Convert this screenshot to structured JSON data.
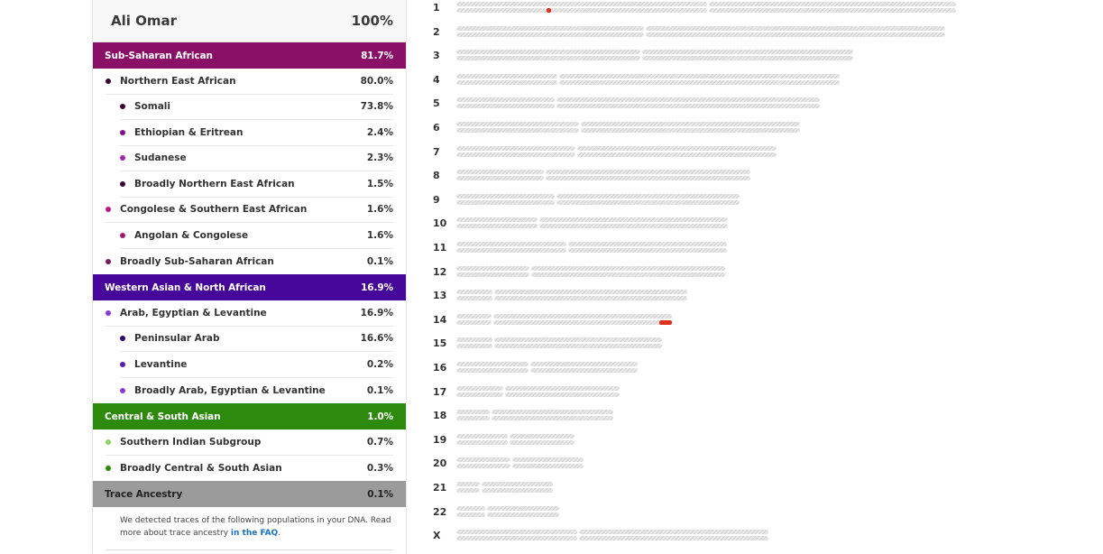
{
  "person": {
    "name": "Ali Omar",
    "total": "100%"
  },
  "colors": {
    "sub_saharan": "#8a0f66",
    "western_asian": "#46069a",
    "central_south_asian": "#2e8a0c",
    "trace": "#9b9b9b",
    "highlight": "#e0301e"
  },
  "ancestry": {
    "sub_saharan": {
      "label": "Sub-Saharan African",
      "value": "81.7%",
      "northern_east_african": {
        "label": "Northern East African",
        "value": "80.0%",
        "dot": "#3d0636"
      },
      "somali": {
        "label": "Somali",
        "value": "73.8%",
        "dot": "#3d0636"
      },
      "ethiopian": {
        "label": "Ethiopian & Eritrean",
        "value": "2.4%",
        "dot": "#84118a"
      },
      "sudanese": {
        "label": "Sudanese",
        "value": "2.3%",
        "dot": "#9b2aa8"
      },
      "broadly_nea": {
        "label": "Broadly Northern East African",
        "value": "1.5%",
        "dot": "#3d0636"
      },
      "congolese_sea": {
        "label": "Congolese & Southern East African",
        "value": "1.6%",
        "dot": "#c01884"
      },
      "angolan": {
        "label": "Angolan & Congolese",
        "value": "1.6%",
        "dot": "#a5156f"
      },
      "broadly_ssa": {
        "label": "Broadly Sub-Saharan African",
        "value": "0.1%",
        "dot": "#7a1a5e"
      }
    },
    "western_asian": {
      "label": "Western Asian & North African",
      "value": "16.9%",
      "arab_egyptian_levantine": {
        "label": "Arab, Egyptian & Levantine",
        "value": "16.9%",
        "dot": "#8a3ad6"
      },
      "peninsular_arab": {
        "label": "Peninsular Arab",
        "value": "16.6%",
        "dot": "#2d0a70"
      },
      "levantine": {
        "label": "Levantine",
        "value": "0.2%",
        "dot": "#5a1ea6"
      },
      "broadly_ael": {
        "label": "Broadly Arab, Egyptian & Levantine",
        "value": "0.1%",
        "dot": "#8a3ad6"
      }
    },
    "central_south_asian": {
      "label": "Central & South Asian",
      "value": "1.0%",
      "southern_indian": {
        "label": "Southern Indian Subgroup",
        "value": "0.7%",
        "dot": "#8fd46a"
      },
      "broadly_csa": {
        "label": "Broadly Central & South Asian",
        "value": "0.3%",
        "dot": "#2e8a0c"
      }
    },
    "trace": {
      "label": "Trace Ancestry",
      "value": "0.1%",
      "note_text": "We detected traces of the following populations in your DNA. Read more about trace ancestry ",
      "note_link": "in the FAQ",
      "note_end": ".",
      "more_marker": "ι"
    }
  },
  "chromosomes": [
    {
      "label": "1",
      "length": 1.0,
      "centromere": 0.503,
      "highlights": [
        {
          "strand": 0,
          "start": 0.18,
          "end": 0.19
        }
      ]
    },
    {
      "label": "2",
      "length": 0.978,
      "centromere": 0.385,
      "highlights": []
    },
    {
      "label": "3",
      "length": 0.795,
      "centromere": 0.465,
      "highlights": []
    },
    {
      "label": "4",
      "length": 0.768,
      "centromere": 0.265,
      "highlights": []
    },
    {
      "label": "5",
      "length": 0.727,
      "centromere": 0.273,
      "highlights": []
    },
    {
      "label": "6",
      "length": 0.687,
      "centromere": 0.36,
      "highlights": []
    },
    {
      "label": "7",
      "length": 0.64,
      "centromere": 0.375,
      "highlights": []
    },
    {
      "label": "8",
      "length": 0.588,
      "centromere": 0.3,
      "highlights": []
    },
    {
      "label": "9",
      "length": 0.566,
      "centromere": 0.35,
      "highlights": []
    },
    {
      "label": "10",
      "length": 0.544,
      "centromere": 0.301,
      "highlights": []
    },
    {
      "label": "11",
      "length": 0.542,
      "centromere": 0.408,
      "highlights": []
    },
    {
      "label": "12",
      "length": 0.538,
      "centromere": 0.275,
      "highlights": []
    },
    {
      "label": "13",
      "length": 0.462,
      "centromere": 0.16,
      "highlights": []
    },
    {
      "label": "14",
      "length": 0.432,
      "centromere": 0.168,
      "highlights": [
        {
          "strand": 0,
          "start": 0.94,
          "end": 1.0
        }
      ]
    },
    {
      "label": "15",
      "length": 0.411,
      "centromere": 0.181,
      "highlights": []
    },
    {
      "label": "16",
      "length": 0.363,
      "centromere": 0.405,
      "highlights": []
    },
    {
      "label": "17",
      "length": 0.327,
      "centromere": 0.29,
      "highlights": []
    },
    {
      "label": "18",
      "length": 0.314,
      "centromere": 0.218,
      "highlights": []
    },
    {
      "label": "19",
      "length": 0.237,
      "centromere": 0.445,
      "highlights": []
    },
    {
      "label": "20",
      "length": 0.254,
      "centromere": 0.431,
      "highlights": []
    },
    {
      "label": "21",
      "length": 0.193,
      "centromere": 0.25,
      "highlights": []
    },
    {
      "label": "22",
      "length": 0.205,
      "centromere": 0.293,
      "highlights": []
    },
    {
      "label": "X",
      "length": 0.625,
      "centromere": 0.391,
      "highlights": []
    }
  ]
}
